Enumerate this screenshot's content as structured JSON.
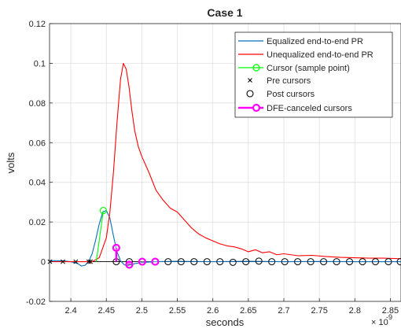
{
  "chart_data": {
    "type": "line",
    "title": "Case 1",
    "xlabel": "seconds",
    "ylabel": "volts",
    "x_exponent": "× 10",
    "x_exponent_power": "-9",
    "xlim": [
      2.37,
      2.865
    ],
    "ylim": [
      -0.02,
      0.12
    ],
    "xticks": [
      2.4,
      2.45,
      2.5,
      2.55,
      2.6,
      2.65,
      2.7,
      2.75,
      2.8,
      2.85
    ],
    "xtick_labels": [
      "2.4",
      "2.45",
      "2.5",
      "2.55",
      "2.6",
      "2.65",
      "2.7",
      "2.75",
      "2.8",
      "2.85"
    ],
    "yticks": [
      -0.02,
      0,
      0.02,
      0.04,
      0.06,
      0.08,
      0.1,
      0.12
    ],
    "ytick_labels": [
      "-0.02",
      "0",
      "0.02",
      "0.04",
      "0.06",
      "0.08",
      "0.1",
      "0.12"
    ],
    "grid": true,
    "legend_position": "top-right",
    "series": [
      {
        "name": "Equalized end-to-end PR",
        "kind": "line",
        "color": "#0072BD",
        "x": [
          2.37,
          2.38,
          2.39,
          2.4,
          2.41,
          2.415,
          2.42,
          2.425,
          2.43,
          2.435,
          2.44,
          2.445,
          2.45,
          2.455,
          2.46,
          2.465,
          2.47,
          2.475,
          2.48,
          2.485,
          2.49,
          2.5,
          2.51,
          2.52,
          2.55,
          2.6,
          2.65,
          2.7,
          2.75,
          2.8,
          2.865
        ],
        "y": [
          0.0005,
          0.0005,
          0.0004,
          0.0,
          -0.001,
          -0.0022,
          -0.0018,
          0.0,
          0.004,
          0.011,
          0.019,
          0.025,
          0.0258,
          0.022,
          0.013,
          0.005,
          0.0005,
          -0.0015,
          -0.002,
          -0.0015,
          -0.001,
          -0.0004,
          -0.0002,
          0.0,
          0.0002,
          0.0,
          0.0002,
          0.0,
          0.0001,
          0.0,
          0.0
        ]
      },
      {
        "name": "Unequalized end-to-end PR",
        "kind": "line",
        "color": "#FF0000",
        "x": [
          2.37,
          2.4,
          2.43,
          2.44,
          2.45,
          2.455,
          2.46,
          2.465,
          2.47,
          2.474,
          2.478,
          2.482,
          2.486,
          2.49,
          2.495,
          2.5,
          2.505,
          2.51,
          2.52,
          2.53,
          2.54,
          2.55,
          2.56,
          2.57,
          2.58,
          2.59,
          2.6,
          2.61,
          2.62,
          2.63,
          2.64,
          2.65,
          2.66,
          2.67,
          2.68,
          2.69,
          2.7,
          2.72,
          2.74,
          2.76,
          2.78,
          2.8,
          2.82,
          2.84,
          2.865
        ],
        "y": [
          0.0,
          0.0,
          0.0,
          0.002,
          0.012,
          0.025,
          0.045,
          0.07,
          0.092,
          0.1,
          0.097,
          0.088,
          0.076,
          0.066,
          0.058,
          0.053,
          0.049,
          0.045,
          0.036,
          0.031,
          0.027,
          0.025,
          0.021,
          0.017,
          0.014,
          0.012,
          0.0105,
          0.009,
          0.008,
          0.0075,
          0.0065,
          0.005,
          0.006,
          0.0045,
          0.005,
          0.0035,
          0.004,
          0.003,
          0.0032,
          0.0026,
          0.0022,
          0.002,
          0.0018,
          0.0018,
          0.0015
        ]
      },
      {
        "name": "Cursor (sample point)",
        "kind": "cursor",
        "color": "#00FF00",
        "x": [
          2.4458
        ],
        "y": [
          0.0258
        ]
      },
      {
        "name": "Pre cursors",
        "kind": "x-marker",
        "color": "#000000",
        "x": [
          2.3705,
          2.3888,
          2.4069,
          2.4252,
          2.4276
        ],
        "y": [
          0.0,
          0.0,
          0.0,
          0.0,
          0.0
        ]
      },
      {
        "name": "Post cursors",
        "kind": "o-marker",
        "color": "#000000",
        "x": [
          2.464,
          2.4823,
          2.5005,
          2.5188,
          2.537,
          2.5553,
          2.5735,
          2.5918,
          2.61,
          2.6283,
          2.6465,
          2.6648,
          2.683,
          2.7013,
          2.7195,
          2.7378,
          2.756,
          2.7743,
          2.7925,
          2.8108,
          2.829,
          2.8473,
          2.864
        ],
        "y": [
          0.0,
          0.0,
          0.0,
          0.0,
          0.0,
          0.0,
          0.0,
          0.0,
          0.0,
          -0.0003,
          0.0,
          0.0003,
          0.0,
          0.0,
          0.0,
          0.0,
          0.0,
          0.0,
          0.0,
          0.0,
          0.0,
          0.0,
          0.0
        ]
      },
      {
        "name": "DFE-canceled cursors",
        "kind": "stem",
        "color": "#FF00FF",
        "x": [
          2.464,
          2.4823,
          2.5005,
          2.5188
        ],
        "y": [
          0.007,
          -0.0015,
          0.0,
          0.0
        ]
      }
    ]
  }
}
